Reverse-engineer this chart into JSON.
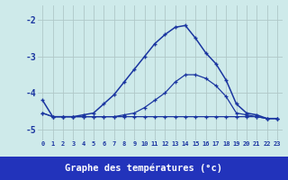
{
  "x": [
    0,
    1,
    2,
    3,
    4,
    5,
    6,
    7,
    8,
    9,
    10,
    11,
    12,
    13,
    14,
    15,
    16,
    17,
    18,
    19,
    20,
    21,
    22,
    23
  ],
  "line_flat": [
    -4.55,
    -4.65,
    -4.65,
    -4.65,
    -4.65,
    -4.65,
    -4.65,
    -4.65,
    -4.65,
    -4.65,
    -4.65,
    -4.65,
    -4.65,
    -4.65,
    -4.65,
    -4.65,
    -4.65,
    -4.65,
    -4.65,
    -4.65,
    -4.65,
    -4.65,
    -4.7,
    -4.7
  ],
  "line_mid": [
    -4.55,
    -4.65,
    -4.65,
    -4.65,
    -4.65,
    -4.65,
    -4.65,
    -4.65,
    -4.6,
    -4.55,
    -4.4,
    -4.2,
    -4.0,
    -3.7,
    -3.5,
    -3.5,
    -3.6,
    -3.8,
    -4.1,
    -4.55,
    -4.6,
    -4.65,
    -4.7,
    -4.7
  ],
  "line_main": [
    -4.2,
    -4.65,
    -4.65,
    -4.65,
    -4.6,
    -4.55,
    -4.3,
    -4.05,
    -3.7,
    -3.35,
    -3.0,
    -2.65,
    -2.4,
    -2.2,
    -2.15,
    -2.5,
    -2.9,
    -3.2,
    -3.65,
    -4.3,
    -4.55,
    -4.6,
    -4.7,
    -4.7
  ],
  "bg_color": "#ceeaea",
  "line_color": "#1a35a0",
  "grid_color": "#b0c8c8",
  "ylabel_vals": [
    -2,
    -3,
    -4,
    -5
  ],
  "xlim": [
    -0.5,
    23.5
  ],
  "ylim": [
    -5.3,
    -1.6
  ],
  "xlabel": "Graphe des températures (°c)",
  "xlabel_bg": "#2233bb",
  "xlabel_color": "#ffffff",
  "tick_labels": [
    "0",
    "1",
    "2",
    "3",
    "4",
    "5",
    "6",
    "7",
    "8",
    "9",
    "10",
    "11",
    "12",
    "13",
    "14",
    "15",
    "16",
    "17",
    "18",
    "19",
    "20",
    "21",
    "22",
    "23"
  ]
}
